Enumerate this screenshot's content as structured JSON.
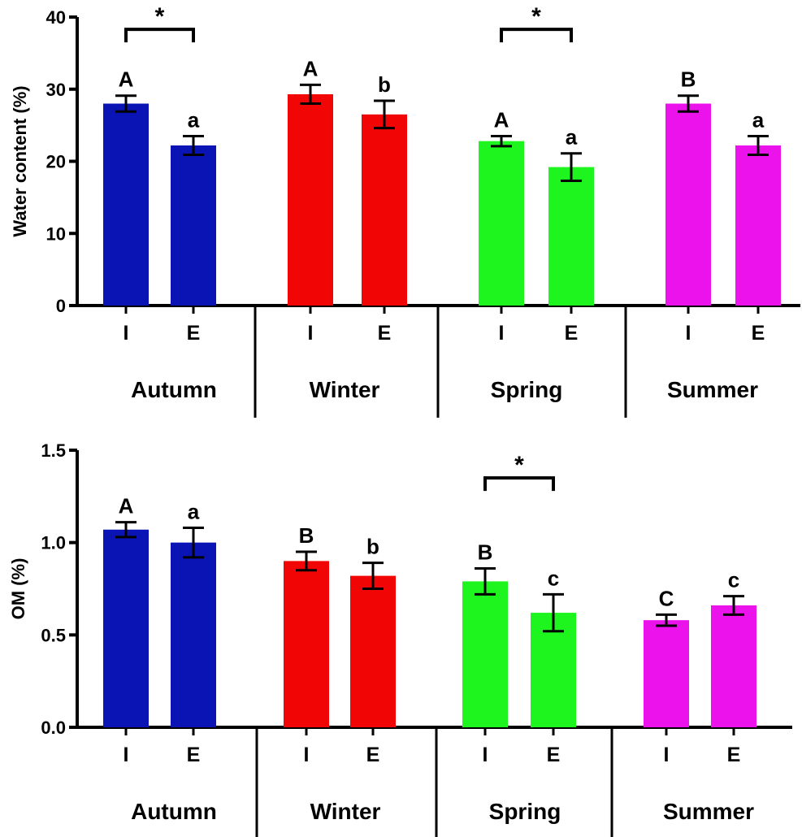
{
  "chart_data": [
    {
      "type": "bar",
      "ylabel": "Water content (%)",
      "ylim": [
        0,
        40
      ],
      "yticks": [
        0,
        10,
        20,
        30,
        40
      ],
      "ytick_labels": [
        "0",
        "10",
        "20",
        "30",
        "40"
      ],
      "categories": [
        "I",
        "E",
        "I",
        "E",
        "I",
        "E",
        "I",
        "E"
      ],
      "groups": [
        "Autumn",
        "Winter",
        "Spring",
        "Summer"
      ],
      "values": [
        28.0,
        22.2,
        29.3,
        26.5,
        22.8,
        19.2,
        28.0,
        22.2
      ],
      "errors": [
        1.1,
        1.3,
        1.3,
        1.9,
        0.7,
        1.9,
        1.1,
        1.3
      ],
      "letters": [
        "A",
        "a",
        "A",
        "b",
        "A",
        "a",
        "B",
        "a"
      ],
      "colors": [
        "#0a14b4",
        "#0a14b4",
        "#f20505",
        "#f20505",
        "#1ef51e",
        "#1ef51e",
        "#ec12ec",
        "#ec12ec"
      ],
      "significance": [
        {
          "from": 0,
          "to": 1,
          "at": 38.3,
          "label": "*"
        },
        {
          "from": 4,
          "to": 5,
          "at": 38.3,
          "label": "*"
        }
      ]
    },
    {
      "type": "bar",
      "ylabel": "OM (%)",
      "ylim": [
        0,
        1.5
      ],
      "yticks": [
        0,
        0.5,
        1.0,
        1.5
      ],
      "ytick_labels": [
        "0.0",
        "0.5",
        "1.0",
        "1.5"
      ],
      "categories": [
        "I",
        "E",
        "I",
        "E",
        "I",
        "E",
        "I",
        "E"
      ],
      "groups": [
        "Autumn",
        "Winter",
        "Spring",
        "Summer"
      ],
      "values": [
        1.07,
        1.0,
        0.9,
        0.82,
        0.79,
        0.62,
        0.58,
        0.66
      ],
      "errors": [
        0.04,
        0.08,
        0.05,
        0.07,
        0.07,
        0.1,
        0.03,
        0.05
      ],
      "letters": [
        "A",
        "a",
        "B",
        "b",
        "B",
        "c",
        "C",
        "c"
      ],
      "colors": [
        "#0a14b4",
        "#0a14b4",
        "#f20505",
        "#f20505",
        "#1ef51e",
        "#1ef51e",
        "#ec12ec",
        "#ec12ec"
      ],
      "significance": [
        {
          "from": 4,
          "to": 5,
          "at": 1.35,
          "label": "*"
        }
      ]
    }
  ]
}
